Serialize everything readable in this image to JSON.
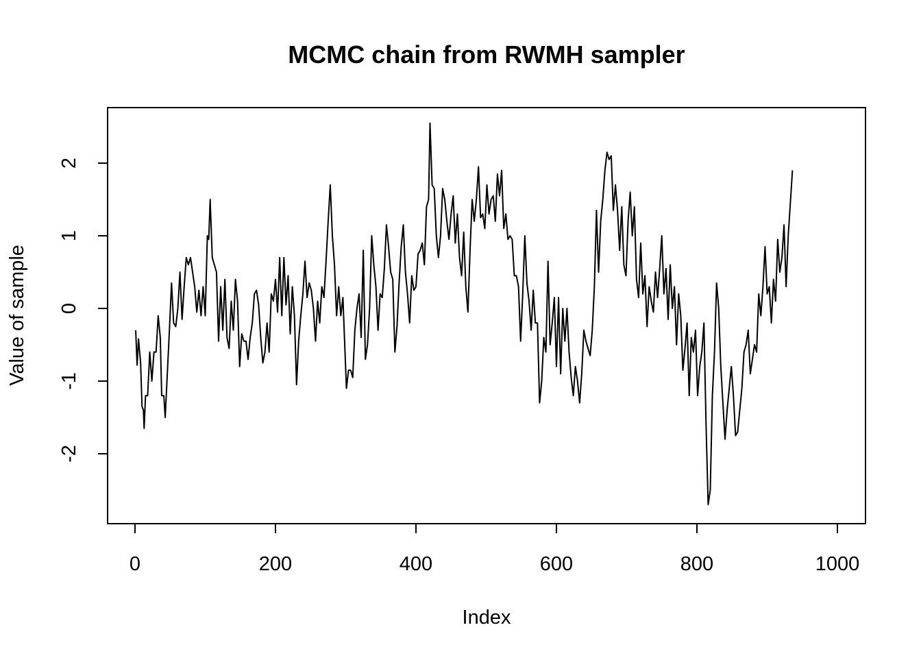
{
  "chart_data": {
    "type": "line",
    "title": "MCMC chain from RWMH sampler",
    "xlabel": "Index",
    "ylabel": "Value of sample",
    "xlim": [
      1,
      1000
    ],
    "ylim": [
      -2.75,
      2.55
    ],
    "x_ticks": [
      0,
      200,
      400,
      600,
      800,
      1000
    ],
    "x_tick_labels": [
      "0",
      "200",
      "400",
      "600",
      "800",
      "1000"
    ],
    "y_ticks": [
      -2,
      -1,
      0,
      1,
      2
    ],
    "y_tick_labels": [
      "-2",
      "-1",
      "0",
      "1",
      "2"
    ],
    "grid": false,
    "line_color": "#000000",
    "series": [
      {
        "points": [
          [
            1,
            -0.3
          ],
          [
            3,
            -0.78
          ],
          [
            5,
            -0.42
          ],
          [
            8,
            -0.75
          ],
          [
            10,
            -1.35
          ],
          [
            12,
            -1.4
          ],
          [
            13,
            -1.65
          ],
          [
            15,
            -1.2
          ],
          [
            18,
            -1.2
          ],
          [
            21,
            -0.6
          ],
          [
            24,
            -1.0
          ],
          [
            27,
            -0.6
          ],
          [
            30,
            -0.6
          ],
          [
            33,
            -0.1
          ],
          [
            36,
            -0.4
          ],
          [
            38,
            -1.2
          ],
          [
            41,
            -1.2
          ],
          [
            43,
            -1.5
          ],
          [
            46,
            -0.9
          ],
          [
            49,
            -0.3
          ],
          [
            52,
            0.35
          ],
          [
            55,
            -0.2
          ],
          [
            58,
            -0.25
          ],
          [
            61,
            0.0
          ],
          [
            64,
            0.5
          ],
          [
            67,
            -0.15
          ],
          [
            70,
            0.3
          ],
          [
            73,
            0.7
          ],
          [
            76,
            0.6
          ],
          [
            79,
            0.7
          ],
          [
            82,
            0.5
          ],
          [
            85,
            0.3
          ],
          [
            88,
            -0.05
          ],
          [
            91,
            0.25
          ],
          [
            94,
            -0.1
          ],
          [
            97,
            0.3
          ],
          [
            100,
            -0.1
          ],
          [
            103,
            1.0
          ],
          [
            105,
            0.95
          ],
          [
            107,
            1.5
          ],
          [
            110,
            0.7
          ],
          [
            113,
            0.6
          ],
          [
            116,
            0.5
          ],
          [
            119,
            -0.45
          ],
          [
            122,
            0.3
          ],
          [
            125,
            -0.3
          ],
          [
            128,
            0.4
          ],
          [
            131,
            -0.4
          ],
          [
            134,
            -0.55
          ],
          [
            137,
            0.1
          ],
          [
            140,
            -0.3
          ],
          [
            143,
            0.4
          ],
          [
            146,
            0.1
          ],
          [
            149,
            -0.8
          ],
          [
            152,
            -0.35
          ],
          [
            155,
            -0.45
          ],
          [
            158,
            -0.45
          ],
          [
            161,
            -0.7
          ],
          [
            164,
            -0.4
          ],
          [
            167,
            -0.2
          ],
          [
            170,
            0.2
          ],
          [
            173,
            0.25
          ],
          [
            176,
            0.05
          ],
          [
            179,
            -0.4
          ],
          [
            182,
            -0.75
          ],
          [
            185,
            -0.6
          ],
          [
            188,
            -0.2
          ],
          [
            191,
            -0.6
          ],
          [
            194,
            0.2
          ],
          [
            197,
            0.1
          ],
          [
            200,
            0.4
          ],
          [
            203,
            -0.05
          ],
          [
            206,
            0.7
          ],
          [
            209,
            -0.1
          ],
          [
            212,
            0.7
          ],
          [
            215,
            0.05
          ],
          [
            218,
            0.45
          ],
          [
            221,
            -0.35
          ],
          [
            224,
            0.3
          ],
          [
            227,
            -0.1
          ],
          [
            230,
            -1.05
          ],
          [
            233,
            -0.45
          ],
          [
            236,
            -0.1
          ],
          [
            239,
            0.2
          ],
          [
            242,
            0.65
          ],
          [
            245,
            0.15
          ],
          [
            248,
            0.35
          ],
          [
            251,
            0.25
          ],
          [
            254,
            0.0
          ],
          [
            257,
            -0.45
          ],
          [
            260,
            0.1
          ],
          [
            263,
            -0.2
          ],
          [
            266,
            0.3
          ],
          [
            269,
            0.15
          ],
          [
            272,
            0.65
          ],
          [
            275,
            1.2
          ],
          [
            278,
            1.7
          ],
          [
            281,
            1.0
          ],
          [
            284,
            0.6
          ],
          [
            287,
            -0.1
          ],
          [
            290,
            0.3
          ],
          [
            293,
            -0.1
          ],
          [
            296,
            0.15
          ],
          [
            299,
            -0.6
          ],
          [
            301,
            -1.1
          ],
          [
            304,
            -0.85
          ],
          [
            307,
            -0.85
          ],
          [
            310,
            -0.95
          ],
          [
            313,
            -0.3
          ],
          [
            316,
            0.0
          ],
          [
            319,
            0.2
          ],
          [
            322,
            -0.4
          ],
          [
            325,
            0.8
          ],
          [
            328,
            -0.7
          ],
          [
            331,
            -0.5
          ],
          [
            334,
            0.0
          ],
          [
            337,
            1.0
          ],
          [
            340,
            0.6
          ],
          [
            343,
            0.3
          ],
          [
            346,
            -0.3
          ],
          [
            349,
            0.2
          ],
          [
            352,
            0.15
          ],
          [
            355,
            0.55
          ],
          [
            358,
            1.15
          ],
          [
            361,
            0.85
          ],
          [
            364,
            0.5
          ],
          [
            367,
            0.4
          ],
          [
            370,
            -0.6
          ],
          [
            373,
            -0.25
          ],
          [
            376,
            0.35
          ],
          [
            379,
            0.85
          ],
          [
            382,
            1.15
          ],
          [
            385,
            0.5
          ],
          [
            388,
            0.2
          ],
          [
            391,
            -0.2
          ],
          [
            394,
            0.45
          ],
          [
            397,
            0.25
          ],
          [
            400,
            0.3
          ],
          [
            403,
            0.75
          ],
          [
            406,
            0.8
          ],
          [
            409,
            0.9
          ],
          [
            412,
            0.6
          ],
          [
            415,
            1.4
          ],
          [
            418,
            1.5
          ],
          [
            420,
            2.55
          ],
          [
            423,
            1.7
          ],
          [
            426,
            1.65
          ],
          [
            429,
            1.0
          ],
          [
            432,
            0.7
          ],
          [
            435,
            1.0
          ],
          [
            438,
            1.65
          ],
          [
            441,
            1.5
          ],
          [
            444,
            1.2
          ],
          [
            447,
            0.95
          ],
          [
            450,
            1.3
          ],
          [
            453,
            1.55
          ],
          [
            456,
            0.9
          ],
          [
            459,
            1.3
          ],
          [
            462,
            0.7
          ],
          [
            465,
            0.45
          ],
          [
            468,
            1.05
          ],
          [
            471,
            0.3
          ],
          [
            474,
            -0.05
          ],
          [
            477,
            0.8
          ],
          [
            480,
            1.5
          ],
          [
            483,
            1.2
          ],
          [
            486,
            1.5
          ],
          [
            489,
            1.95
          ],
          [
            492,
            1.25
          ],
          [
            495,
            1.3
          ],
          [
            498,
            1.1
          ],
          [
            501,
            1.7
          ],
          [
            504,
            1.3
          ],
          [
            507,
            1.5
          ],
          [
            510,
            1.55
          ],
          [
            513,
            1.2
          ],
          [
            516,
            1.85
          ],
          [
            519,
            1.55
          ],
          [
            522,
            1.9
          ],
          [
            525,
            1.1
          ],
          [
            528,
            1.3
          ],
          [
            531,
            0.95
          ],
          [
            534,
            1.0
          ],
          [
            537,
            0.95
          ],
          [
            540,
            0.45
          ],
          [
            543,
            0.45
          ],
          [
            546,
            0.3
          ],
          [
            549,
            -0.45
          ],
          [
            552,
            0.2
          ],
          [
            555,
            1.0
          ],
          [
            558,
            0.35
          ],
          [
            561,
            0.1
          ],
          [
            564,
            -0.3
          ],
          [
            567,
            0.25
          ],
          [
            570,
            -0.2
          ],
          [
            573,
            -0.2
          ],
          [
            576,
            -1.3
          ],
          [
            579,
            -1.0
          ],
          [
            582,
            -0.4
          ],
          [
            585,
            -0.6
          ],
          [
            588,
            0.65
          ],
          [
            591,
            -0.5
          ],
          [
            594,
            -0.2
          ],
          [
            597,
            0.15
          ],
          [
            600,
            -0.8
          ],
          [
            603,
            0.15
          ],
          [
            606,
            -0.9
          ],
          [
            609,
            0.0
          ],
          [
            612,
            -0.45
          ],
          [
            615,
            0.0
          ],
          [
            618,
            -0.6
          ],
          [
            621,
            -0.95
          ],
          [
            624,
            -1.2
          ],
          [
            627,
            -0.8
          ],
          [
            630,
            -1.0
          ],
          [
            633,
            -1.3
          ],
          [
            636,
            -0.9
          ],
          [
            639,
            -0.3
          ],
          [
            642,
            -0.45
          ],
          [
            645,
            -0.55
          ],
          [
            648,
            -0.65
          ],
          [
            651,
            -0.3
          ],
          [
            654,
            0.3
          ],
          [
            657,
            1.35
          ],
          [
            660,
            0.5
          ],
          [
            663,
            1.2
          ],
          [
            666,
            1.5
          ],
          [
            669,
            1.9
          ],
          [
            672,
            2.15
          ],
          [
            675,
            2.05
          ],
          [
            678,
            2.1
          ],
          [
            681,
            1.35
          ],
          [
            684,
            1.7
          ],
          [
            687,
            1.35
          ],
          [
            690,
            0.8
          ],
          [
            693,
            1.4
          ],
          [
            696,
            0.6
          ],
          [
            699,
            0.45
          ],
          [
            702,
            1.2
          ],
          [
            705,
            1.6
          ],
          [
            708,
            1.0
          ],
          [
            711,
            1.4
          ],
          [
            714,
            0.4
          ],
          [
            717,
            0.15
          ],
          [
            720,
            0.9
          ],
          [
            723,
            0.2
          ],
          [
            726,
            0.45
          ],
          [
            729,
            -0.25
          ],
          [
            732,
            0.3
          ],
          [
            735,
            0.1
          ],
          [
            738,
            -0.05
          ],
          [
            741,
            0.5
          ],
          [
            744,
            0.15
          ],
          [
            747,
            0.55
          ],
          [
            750,
            1.0
          ],
          [
            753,
            0.2
          ],
          [
            756,
            0.55
          ],
          [
            759,
            -0.15
          ],
          [
            762,
            0.6
          ],
          [
            765,
            0.0
          ],
          [
            768,
            0.3
          ],
          [
            771,
            -0.5
          ],
          [
            774,
            0.2
          ],
          [
            777,
            -0.1
          ],
          [
            780,
            -0.85
          ],
          [
            783,
            -0.55
          ],
          [
            786,
            -0.2
          ],
          [
            789,
            -1.2
          ],
          [
            792,
            -0.4
          ],
          [
            795,
            -0.6
          ],
          [
            798,
            -0.3
          ],
          [
            801,
            -1.2
          ],
          [
            804,
            -0.8
          ],
          [
            807,
            -0.6
          ],
          [
            810,
            -0.2
          ],
          [
            813,
            -1.6
          ],
          [
            816,
            -2.7
          ],
          [
            819,
            -2.5
          ],
          [
            822,
            -1.2
          ],
          [
            825,
            -0.6
          ],
          [
            828,
            0.35
          ],
          [
            831,
            0.0
          ],
          [
            834,
            -0.8
          ],
          [
            837,
            -1.3
          ],
          [
            840,
            -1.8
          ],
          [
            843,
            -1.4
          ],
          [
            846,
            -1.1
          ],
          [
            849,
            -0.8
          ],
          [
            852,
            -1.2
          ],
          [
            855,
            -1.75
          ],
          [
            858,
            -1.7
          ],
          [
            861,
            -1.4
          ],
          [
            864,
            -1.1
          ],
          [
            867,
            -0.6
          ],
          [
            870,
            -0.5
          ],
          [
            873,
            -0.3
          ],
          [
            876,
            -0.9
          ],
          [
            879,
            -0.7
          ],
          [
            882,
            -0.5
          ],
          [
            885,
            -0.6
          ],
          [
            888,
            0.2
          ],
          [
            891,
            -0.1
          ],
          [
            894,
            0.3
          ],
          [
            897,
            0.85
          ],
          [
            900,
            0.2
          ],
          [
            903,
            0.3
          ],
          [
            906,
            -0.2
          ],
          [
            909,
            0.4
          ],
          [
            912,
            0.1
          ],
          [
            915,
            0.95
          ],
          [
            918,
            0.5
          ],
          [
            921,
            0.7
          ],
          [
            924,
            1.15
          ],
          [
            927,
            0.3
          ],
          [
            930,
            1.0
          ],
          [
            933,
            1.45
          ],
          [
            936,
            1.9
          ]
        ]
      }
    ]
  }
}
